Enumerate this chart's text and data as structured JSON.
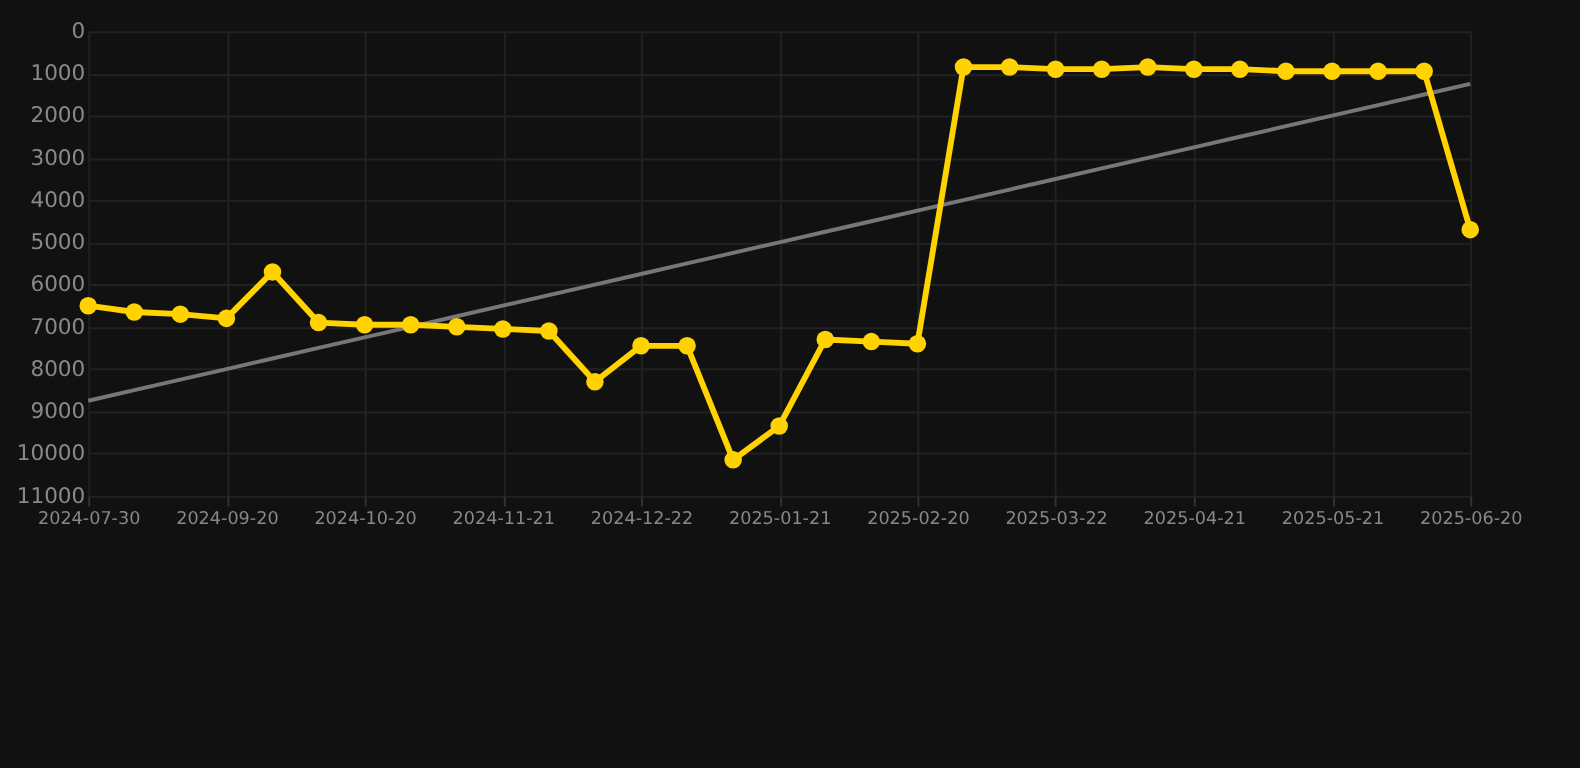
{
  "chart_data": {
    "type": "line",
    "categories": [
      "2024-07-30",
      null,
      null,
      "2024-09-20",
      null,
      null,
      "2024-10-20",
      null,
      null,
      "2024-11-21",
      null,
      null,
      "2024-12-22",
      null,
      null,
      "2025-01-21",
      null,
      null,
      "2025-02-20",
      null,
      null,
      "2025-03-22",
      null,
      null,
      "2025-04-21",
      null,
      null,
      "2025-05-21",
      null,
      null,
      "2025-06-20"
    ],
    "series": [
      {
        "color": "#ffd200",
        "marker": "circle",
        "values": [
          6500,
          6650,
          6700,
          6800,
          5700,
          6900,
          6950,
          6950,
          7000,
          7050,
          7100,
          8300,
          7450,
          7450,
          10150,
          9350,
          7300,
          7350,
          7400,
          850,
          850,
          900,
          900,
          850,
          900,
          900,
          950,
          950,
          950,
          950,
          4700
        ]
      },
      {
        "type": "line",
        "color": "#777777",
        "marker": "none",
        "values": [
          8750,
          8500,
          8250,
          8000,
          7750,
          7500,
          7250,
          7000,
          6750,
          6500,
          6250,
          6000,
          5750,
          5500,
          5250,
          5000,
          4750,
          4500,
          4250,
          4000,
          3750,
          3500,
          3250,
          3000,
          2750,
          2500,
          2250,
          2000,
          1750,
          1500,
          1250
        ]
      }
    ],
    "ylim": [
      11000,
      0
    ],
    "yticks": [
      0,
      1000,
      2000,
      3000,
      4000,
      5000,
      6000,
      7000,
      8000,
      9000,
      10000,
      11000
    ],
    "grid": true
  }
}
